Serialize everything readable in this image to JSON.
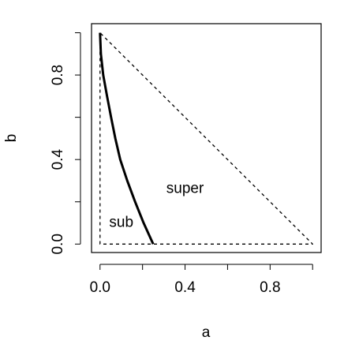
{
  "chart_data": {
    "type": "line",
    "xlabel": "a",
    "ylabel": "b",
    "xlim": [
      -0.04,
      1.04
    ],
    "ylim": [
      -0.04,
      1.043
    ],
    "xticks": [
      {
        "value": 0,
        "label": "0.0"
      },
      0.4,
      0.8
    ],
    "xminor_ticks": [
      0.2,
      0.6,
      1.0
    ],
    "yticks": [
      {
        "value": 0,
        "label": "0.0"
      },
      0.4,
      0.8
    ],
    "yminor_ticks": [
      0.2,
      0.6,
      1.0
    ],
    "series": [
      {
        "color": "#000000",
        "dash": false,
        "width": 3,
        "x": [
          0,
          0.004,
          0.015,
          0.033,
          0.052,
          0.072,
          0.095,
          0.128,
          0.165,
          0.205,
          0.25
        ],
        "values": [
          1,
          0.9,
          0.8,
          0.7,
          0.6,
          0.5,
          0.4,
          0.3,
          0.2,
          0.1,
          0
        ]
      },
      {
        "color": "#000000",
        "dash": true,
        "width": 1.3,
        "x": [
          0,
          0,
          1,
          0
        ],
        "values": [
          1,
          0,
          0,
          1
        ]
      }
    ],
    "annotations": [
      {
        "text": "super",
        "x": 0.4,
        "y": 0.26
      },
      {
        "text": "sub",
        "x": 0.1,
        "y": 0.1
      }
    ]
  }
}
